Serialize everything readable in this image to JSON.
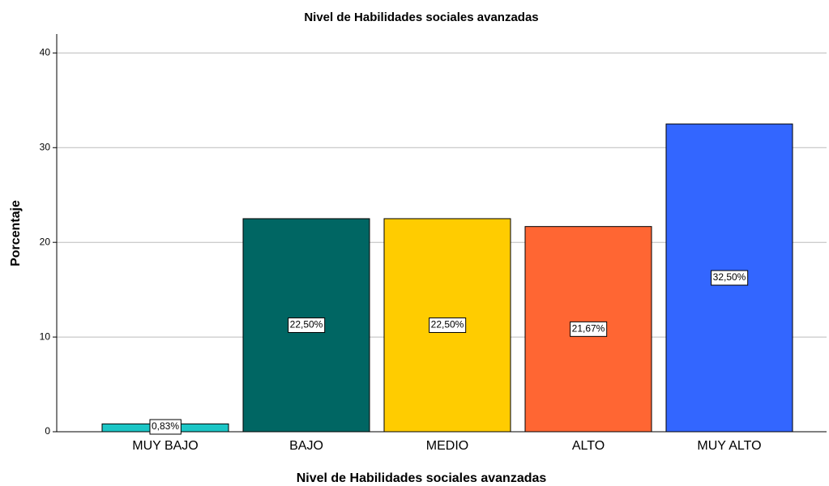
{
  "chart_data": {
    "type": "bar",
    "title": "Nivel de Habilidades sociales avanzadas",
    "x_label": "Nivel de Habilidades sociales avanzadas",
    "y_label": "Porcentaje",
    "categories": [
      "MUY BAJO",
      "BAJO",
      "MEDIO",
      "ALTO",
      "MUY ALTO"
    ],
    "values": [
      0.83,
      22.5,
      22.5,
      21.67,
      32.5
    ],
    "value_labels": [
      "0,83%",
      "22,50%",
      "22,50%",
      "21,67%",
      "32,50%"
    ],
    "colors": [
      "#1cc6c6",
      "#006663",
      "#ffcc00",
      "#ff6633",
      "#3366ff"
    ],
    "ylim": [
      0,
      42
    ],
    "yticks": [
      0,
      10,
      20,
      30,
      40
    ],
    "grid": true
  }
}
